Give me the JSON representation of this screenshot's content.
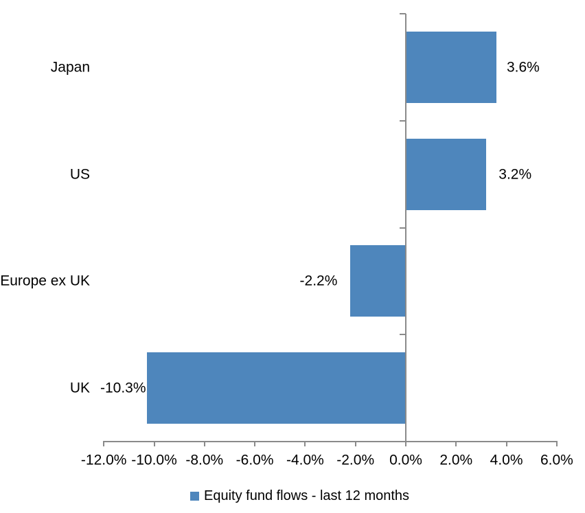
{
  "chart_data": {
    "type": "bar",
    "orientation": "horizontal",
    "title": "",
    "categories": [
      "Japan",
      "US",
      "Europe ex UK",
      "UK"
    ],
    "values": [
      3.6,
      3.2,
      -2.2,
      -10.3
    ],
    "data_labels": [
      "3.6%",
      "3.2%",
      "-2.2%",
      "-10.3%"
    ],
    "x_axis": {
      "ticks": [
        -12,
        -10,
        -8,
        -6,
        -4,
        -2,
        0,
        2,
        4,
        6
      ],
      "tick_labels": [
        "-12.0%",
        "-10.0%",
        "-8.0%",
        "-6.0%",
        "-4.0%",
        "-2.0%",
        "0.0%",
        "2.0%",
        "4.0%",
        "6.0%"
      ],
      "xlim": [
        -12,
        6
      ]
    },
    "grid": "off",
    "legend": {
      "position": "bottom",
      "label": "Equity fund flows - last 12 months",
      "swatch_color": "#4E86BC"
    },
    "bar_color": "#4E86BC",
    "axis_color": "#8A8A8A",
    "text_color": "#000000",
    "background_color": "#FFFFFF"
  }
}
